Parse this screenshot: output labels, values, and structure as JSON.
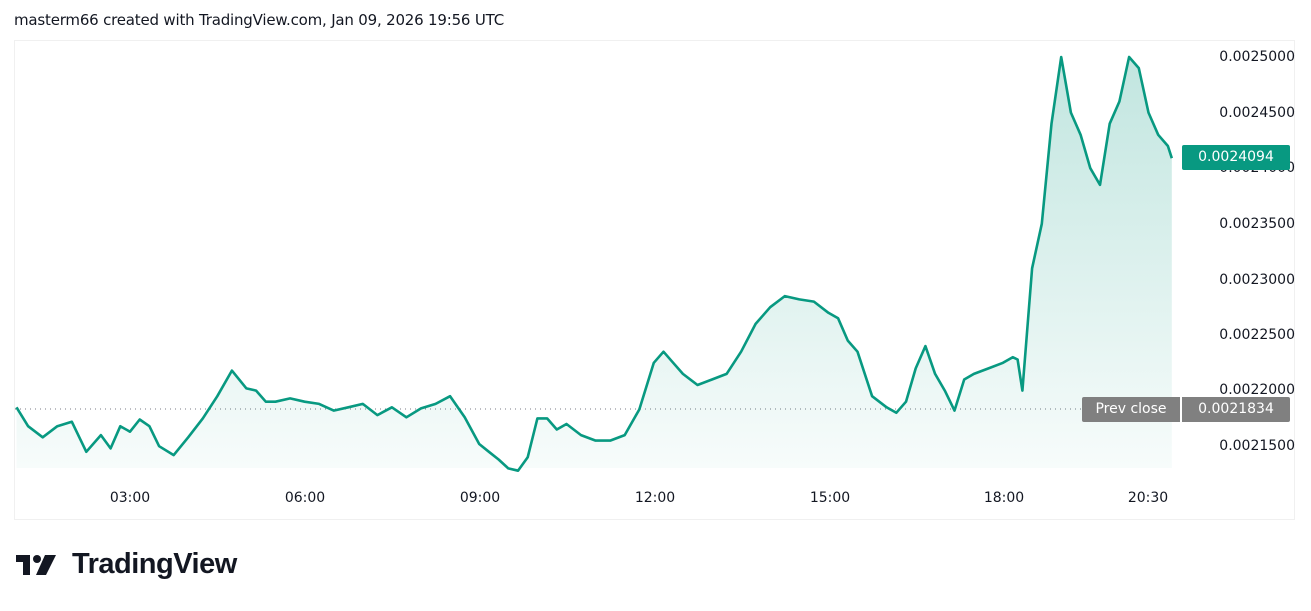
{
  "header": {
    "caption": "masterm66 created with TradingView.com, Jan 09, 2026 19:56 UTC"
  },
  "branding": {
    "logo_text": "TradingView",
    "logo_icon": "tradingview-logo-icon"
  },
  "colors": {
    "line": "#089981",
    "area_top": "rgba(8,153,129,0.22)",
    "area_bottom": "rgba(8,153,129,0.03)",
    "last_price_badge": "#089981",
    "prev_close_badge": "#808080",
    "text": "#131722"
  },
  "badges": {
    "last_price": "0.0024094",
    "prev_close_label": "Prev close",
    "prev_close_value": "0.0021834"
  },
  "chart_data": {
    "type": "area",
    "title": "",
    "xlabel": "",
    "ylabel": "",
    "x_ticks": [
      "03:00",
      "06:00",
      "09:00",
      "12:00",
      "15:00",
      "18:00",
      "20:30"
    ],
    "y_ticks": [
      "0.0025000",
      "0.0024500",
      "0.0024000",
      "0.0023500",
      "0.0023000",
      "0.0022500",
      "0.0022000",
      "0.0021500"
    ],
    "ylim": [
      0.00212,
      0.00251
    ],
    "grid": false,
    "legend": "none",
    "last_price": 0.0024094,
    "prev_close": 0.0021834,
    "series": [
      {
        "name": "price",
        "x": [
          "01:03",
          "01:15",
          "01:30",
          "01:45",
          "02:00",
          "02:15",
          "02:30",
          "02:40",
          "02:50",
          "03:00",
          "03:10",
          "03:20",
          "03:30",
          "03:45",
          "04:00",
          "04:15",
          "04:30",
          "04:45",
          "05:00",
          "05:10",
          "05:20",
          "05:30",
          "05:45",
          "06:00",
          "06:15",
          "06:30",
          "06:45",
          "07:00",
          "07:15",
          "07:30",
          "07:45",
          "08:00",
          "08:15",
          "08:30",
          "08:45",
          "09:00",
          "09:10",
          "09:20",
          "09:30",
          "09:40",
          "09:50",
          "10:00",
          "10:10",
          "10:20",
          "10:30",
          "10:45",
          "11:00",
          "11:15",
          "11:30",
          "11:45",
          "12:00",
          "12:10",
          "12:20",
          "12:30",
          "12:45",
          "13:00",
          "13:15",
          "13:30",
          "13:45",
          "14:00",
          "14:15",
          "14:30",
          "14:45",
          "15:00",
          "15:10",
          "15:20",
          "15:30",
          "15:45",
          "16:00",
          "16:10",
          "16:20",
          "16:30",
          "16:40",
          "16:50",
          "17:00",
          "17:10",
          "17:20",
          "17:30",
          "17:45",
          "18:00",
          "18:10",
          "18:15",
          "18:20",
          "18:30",
          "18:40",
          "18:50",
          "19:00",
          "19:10",
          "19:20",
          "19:30",
          "19:40",
          "19:50",
          "20:00",
          "20:10",
          "20:20",
          "20:30",
          "20:40",
          "20:50",
          "20:54"
        ],
        "values": [
          0.002185,
          0.002168,
          0.002158,
          0.002168,
          0.002172,
          0.002145,
          0.00216,
          0.002148,
          0.002168,
          0.002163,
          0.002174,
          0.002168,
          0.00215,
          0.002142,
          0.002158,
          0.002175,
          0.002195,
          0.002218,
          0.002202,
          0.0022,
          0.00219,
          0.00219,
          0.002193,
          0.00219,
          0.002188,
          0.002182,
          0.002185,
          0.002188,
          0.002178,
          0.002185,
          0.002176,
          0.002184,
          0.002188,
          0.002195,
          0.002176,
          0.002152,
          0.002145,
          0.002138,
          0.00213,
          0.002128,
          0.00214,
          0.002175,
          0.002175,
          0.002165,
          0.00217,
          0.00216,
          0.002155,
          0.002155,
          0.00216,
          0.002183,
          0.002225,
          0.002235,
          0.002225,
          0.002215,
          0.002205,
          0.00221,
          0.002215,
          0.002235,
          0.00226,
          0.002275,
          0.002285,
          0.002282,
          0.00228,
          0.00227,
          0.002265,
          0.002245,
          0.002235,
          0.002195,
          0.002185,
          0.00218,
          0.00219,
          0.00222,
          0.00224,
          0.002215,
          0.0022,
          0.002182,
          0.00221,
          0.002215,
          0.00222,
          0.002225,
          0.00223,
          0.002228,
          0.0022,
          0.00231,
          0.00235,
          0.00244,
          0.0025,
          0.00245,
          0.00243,
          0.0024,
          0.002385,
          0.00244,
          0.00246,
          0.0025,
          0.00249,
          0.00245,
          0.00243,
          0.00242,
          0.002409
        ]
      }
    ]
  },
  "axes": {
    "y_labels": [
      "0.0025000",
      "0.0024500",
      "0.0024000",
      "0.0023500",
      "0.0023000",
      "0.0022500",
      "0.0022000",
      "0.0021500"
    ],
    "x_labels": [
      "03:00",
      "06:00",
      "09:00",
      "12:00",
      "15:00",
      "18:00",
      "20:30"
    ]
  }
}
